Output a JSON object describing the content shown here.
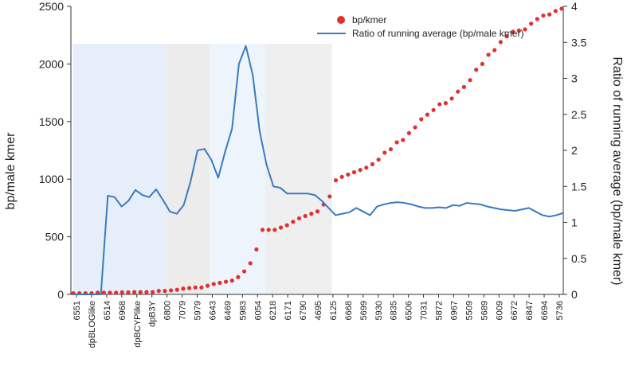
{
  "chart_data": {
    "type": "line+scatter",
    "title": "",
    "xlabel": "",
    "ylabel": "bp/male kmer",
    "y2label": "Ratio of running average (bp/male kmer)",
    "ylim": [
      0,
      2500
    ],
    "y2lim": [
      0,
      4
    ],
    "yticks": [
      0,
      500,
      1000,
      1500,
      2000,
      2500
    ],
    "y2ticks": [
      0,
      0.5,
      1,
      1.5,
      2,
      2.5,
      3,
      3.5,
      4
    ],
    "y2ticklabels": [
      "0",
      "0.5",
      "1",
      "1.5",
      "2",
      "2.5",
      "3",
      "3.5",
      "4"
    ],
    "legend_position": "top-right",
    "colors": {
      "scatter": "#e03131",
      "line": "#3a7bbf",
      "band1": "#e6eef9",
      "band2": "#ececec",
      "band3": "#eef4fb",
      "band4": "#efefef",
      "axis": "#333333"
    },
    "x_tick_labels": [
      "6551",
      "dpBLOGlike",
      "6514",
      "6968",
      "dpBCYPlike",
      "dpB3Y",
      "6800",
      "7079",
      "5979",
      "6643",
      "6469",
      "5983",
      "6054",
      "6218",
      "6171",
      "6790",
      "4695",
      "6125",
      "6668",
      "5699",
      "5930",
      "6835",
      "6506",
      "7031",
      "5872",
      "6967",
      "5509",
      "5689",
      "6009",
      "6672",
      "6847",
      "6694",
      "5736"
    ],
    "series": [
      {
        "name": "bp/kmer",
        "axis": "left",
        "kind": "scatter",
        "values": [
          10,
          10,
          10,
          10,
          15,
          15,
          15,
          15,
          18,
          18,
          20,
          20,
          20,
          20,
          30,
          30,
          35,
          40,
          50,
          55,
          60,
          60,
          75,
          90,
          100,
          110,
          120,
          150,
          200,
          270,
          390,
          560,
          560,
          560,
          580,
          600,
          630,
          660,
          680,
          700,
          720,
          780,
          850,
          990,
          1020,
          1040,
          1060,
          1080,
          1100,
          1130,
          1170,
          1230,
          1260,
          1320,
          1340,
          1400,
          1450,
          1520,
          1560,
          1600,
          1650,
          1660,
          1700,
          1760,
          1800,
          1860,
          1950,
          2000,
          2080,
          2120,
          2190,
          2240,
          2280,
          2290,
          2300,
          2350,
          2390,
          2420,
          2430,
          2460,
          2480
        ]
      },
      {
        "name": "Ratio of running average (bp/male kmer)",
        "axis": "right",
        "kind": "line",
        "values": [
          0,
          0,
          0,
          0,
          0,
          1.37,
          1.35,
          1.22,
          1.3,
          1.45,
          1.38,
          1.35,
          1.46,
          1.31,
          1.15,
          1.12,
          1.24,
          1.57,
          2.0,
          2.02,
          1.87,
          1.62,
          1.98,
          2.3,
          3.2,
          3.45,
          3.05,
          2.27,
          1.8,
          1.5,
          1.48,
          1.4,
          1.4,
          1.4,
          1.4,
          1.38,
          1.3,
          1.2,
          1.1,
          1.12,
          1.14,
          1.2,
          1.15,
          1.1,
          1.22,
          1.25,
          1.27,
          1.28,
          1.27,
          1.25,
          1.22,
          1.2,
          1.2,
          1.21,
          1.2,
          1.24,
          1.23,
          1.27,
          1.26,
          1.25,
          1.22,
          1.2,
          1.18,
          1.17,
          1.16,
          1.18,
          1.2,
          1.15,
          1.1,
          1.08,
          1.1,
          1.13
        ]
      }
    ],
    "annotations": []
  }
}
